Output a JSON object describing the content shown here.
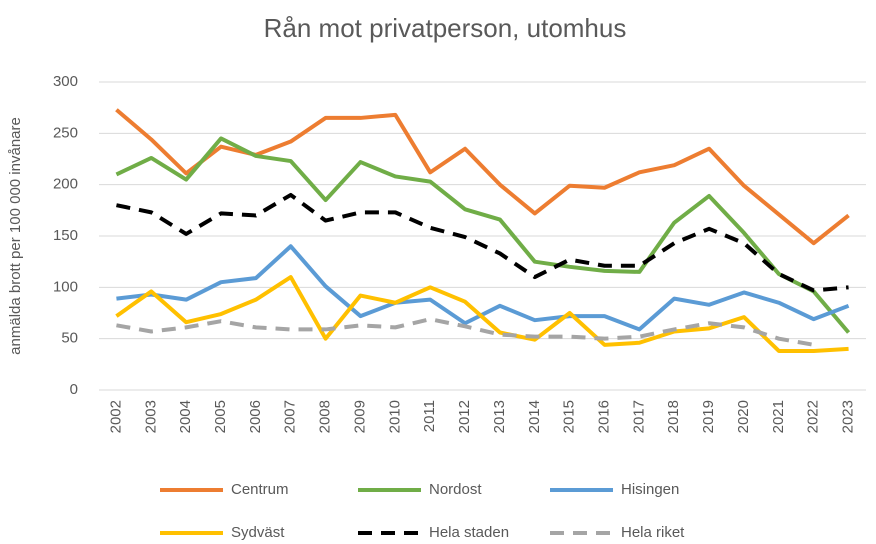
{
  "chart_data": {
    "type": "line",
    "title": "Rån mot privatperson, utomhus",
    "y_label": "anmälda brott per 100 000 invånare",
    "categories": [
      "2002",
      "2003",
      "2004",
      "2005",
      "2006",
      "2007",
      "2008",
      "2009",
      "2010",
      "2011",
      "2012",
      "2013",
      "2014",
      "2015",
      "2016",
      "2017",
      "2018",
      "2019",
      "2020",
      "2021",
      "2022",
      "2023"
    ],
    "series": [
      {
        "name": "Centrum",
        "color": "#ED7D31",
        "dashed": false,
        "values": [
          273,
          244,
          211,
          237,
          229,
          242,
          265,
          265,
          268,
          212,
          235,
          200,
          172,
          199,
          197,
          212,
          219,
          235,
          199,
          171,
          143,
          170
        ]
      },
      {
        "name": "Nordost",
        "color": "#70AD47",
        "dashed": false,
        "values": [
          210,
          226,
          205,
          245,
          228,
          223,
          185,
          222,
          208,
          203,
          176,
          166,
          125,
          120,
          116,
          115,
          163,
          189,
          153,
          113,
          96,
          56
        ]
      },
      {
        "name": "Hisingen",
        "color": "#5B9BD5",
        "dashed": false,
        "values": [
          89,
          93,
          88,
          105,
          109,
          140,
          101,
          72,
          85,
          88,
          65,
          82,
          68,
          72,
          72,
          59,
          89,
          83,
          95,
          85,
          69,
          82
        ]
      },
      {
        "name": "Sydväst",
        "color": "#FFC000",
        "dashed": false,
        "values": [
          72,
          96,
          66,
          74,
          88,
          110,
          50,
          92,
          85,
          100,
          86,
          56,
          49,
          75,
          44,
          46,
          57,
          60,
          71,
          38,
          38,
          40
        ]
      },
      {
        "name": "Hela staden",
        "color": "#000000",
        "dashed": true,
        "values": [
          180,
          173,
          152,
          172,
          170,
          190,
          165,
          173,
          173,
          158,
          149,
          133,
          110,
          127,
          121,
          121,
          143,
          157,
          143,
          113,
          97,
          100
        ]
      },
      {
        "name": "Hela riket",
        "color": "#A5A5A5",
        "dashed": true,
        "values": [
          63,
          57,
          61,
          67,
          61,
          59,
          59,
          63,
          61,
          69,
          62,
          54,
          52,
          52,
          50,
          52,
          59,
          65,
          61,
          50,
          44,
          null
        ]
      }
    ],
    "ylim": [
      0,
      300
    ],
    "yticks": [
      0,
      50,
      100,
      150,
      200,
      250,
      300
    ],
    "grid": true
  }
}
